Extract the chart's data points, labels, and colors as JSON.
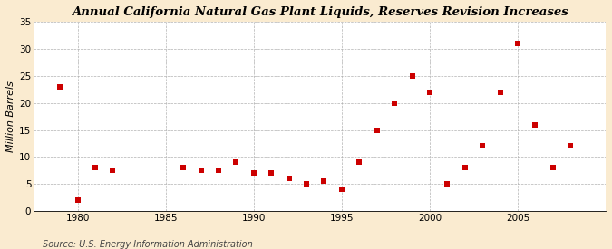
{
  "title": "Annual California Natural Gas Plant Liquids, Reserves Revision Increases",
  "ylabel": "Million Barrels",
  "source": "Source: U.S. Energy Information Administration",
  "outer_background_color": "#faebd0",
  "plot_background_color": "#ffffff",
  "marker_color": "#cc0000",
  "marker": "s",
  "marker_size": 4,
  "xlim": [
    1977.5,
    2010
  ],
  "ylim": [
    0,
    35
  ],
  "xticks": [
    1980,
    1985,
    1990,
    1995,
    2000,
    2005
  ],
  "yticks": [
    0,
    5,
    10,
    15,
    20,
    25,
    30,
    35
  ],
  "x": [
    1979,
    1980,
    1981,
    1982,
    1986,
    1987,
    1988,
    1989,
    1990,
    1991,
    1992,
    1993,
    1994,
    1995,
    1996,
    1997,
    1998,
    1999,
    2000,
    2001,
    2002,
    2003,
    2004,
    2005,
    2006,
    2007,
    2008
  ],
  "y": [
    23,
    2,
    8,
    7.5,
    8,
    7.5,
    7.5,
    9,
    7,
    7,
    6,
    5,
    5.5,
    4,
    9,
    15,
    20,
    25,
    22,
    5,
    8,
    12,
    22,
    31,
    16,
    8,
    12
  ]
}
